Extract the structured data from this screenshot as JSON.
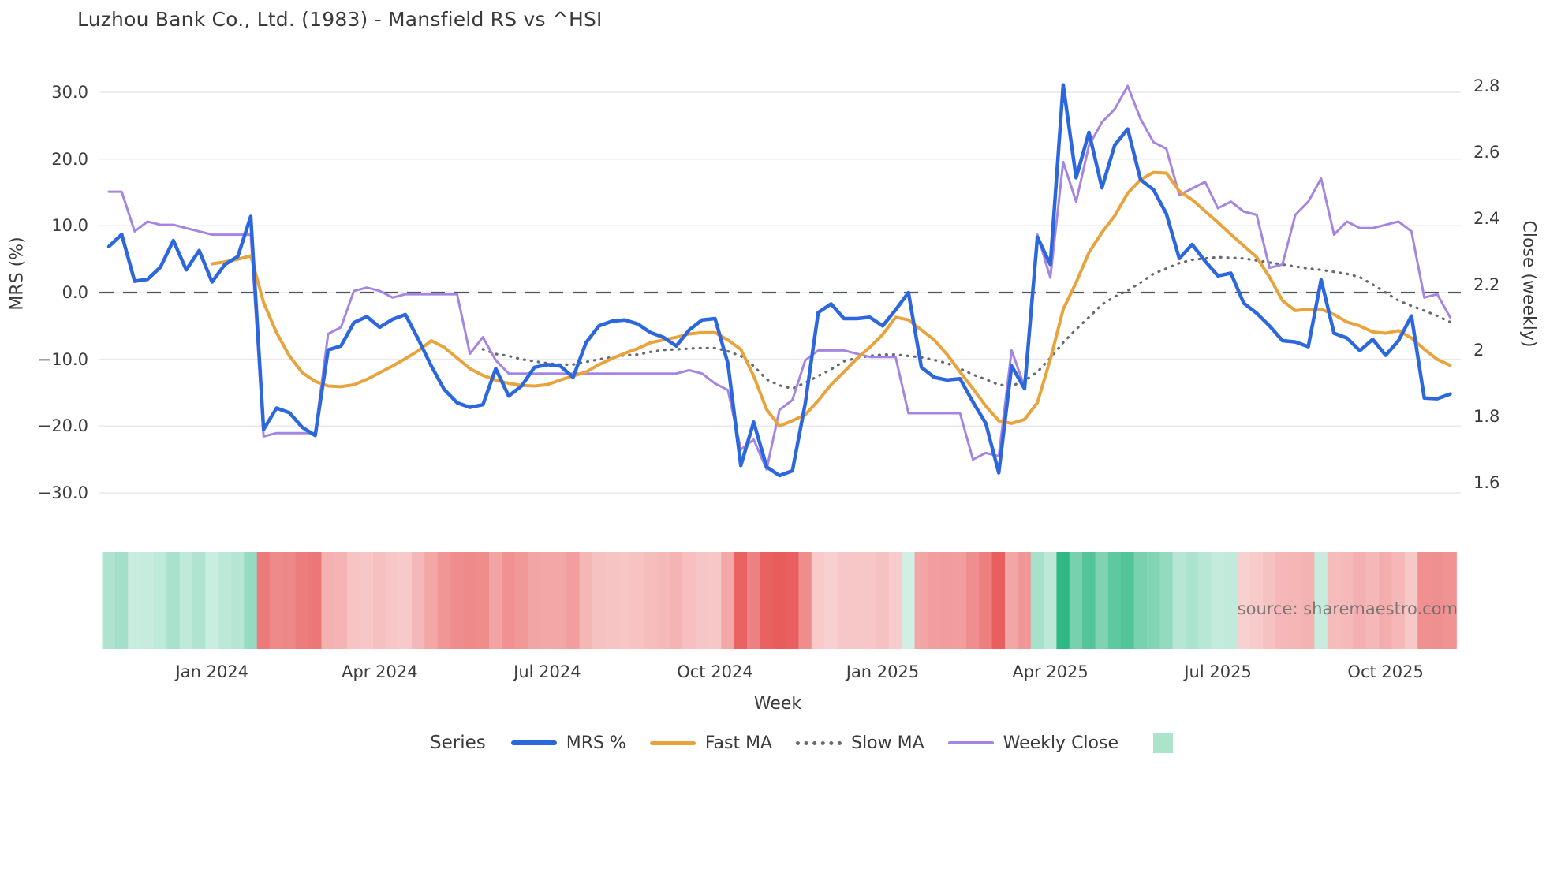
{
  "title": "Luzhou Bank Co., Ltd. (1983) - Mansfield RS vs ^HSI",
  "source": "source: sharemaestro.com",
  "axes": {
    "left": {
      "label": "MRS (%)",
      "ticks": [
        "30.0",
        "20.0",
        "10.0",
        "0.0",
        "−10.0",
        "−20.0",
        "−30.0"
      ],
      "tick_values": [
        30,
        20,
        10,
        0,
        -10,
        -20,
        -30
      ],
      "range": [
        -33,
        33
      ]
    },
    "right": {
      "label": "Close (weekly)",
      "ticks": [
        "2.8",
        "2.6",
        "2.4",
        "2.2",
        "2",
        "1.8",
        "1.6"
      ],
      "tick_values": [
        2.8,
        2.6,
        2.4,
        2.2,
        2.0,
        1.8,
        1.6
      ],
      "range": [
        1.55,
        2.85
      ]
    },
    "x": {
      "label": "Week",
      "ticks": [
        "Jan 2024",
        "Apr 2024",
        "Jul 2024",
        "Oct 2024",
        "Jan 2025",
        "Apr 2025",
        "Jul 2025",
        "Oct 2025"
      ],
      "tick_weeks": [
        8,
        21,
        34,
        47,
        60,
        73,
        86,
        99
      ]
    }
  },
  "legend": {
    "title": "Series",
    "items": [
      {
        "label": "MRS %",
        "color": "#2c67de",
        "style": "solid"
      },
      {
        "label": "Fast MA",
        "color": "#e8a33d",
        "style": "solid"
      },
      {
        "label": "Slow MA",
        "color": "#66696e",
        "style": "dotted"
      },
      {
        "label": "Weekly Close",
        "color": "#a685e2",
        "style": "solid"
      }
    ],
    "heatmap_swatch_color": "#ace4cb"
  },
  "colors": {
    "grid": "#e9e9f2",
    "zero_line": "#50555e",
    "heatmap_positive": "#2fb884",
    "heatmap_negative": "#e64c4c",
    "background": "#ffffff",
    "text": "#3a3a3a"
  },
  "chart_data": {
    "type": "line",
    "title": "Luzhou Bank Co., Ltd. (1983) - Mansfield RS vs ^HSI",
    "xlabel": "Week",
    "ylabel_left": "MRS (%)",
    "ylabel_right": "Close (weekly)",
    "weeks_total": 105,
    "x_tick_weeks": [
      8,
      21,
      34,
      47,
      60,
      73,
      86,
      99
    ],
    "x_tick_labels": [
      "Jan 2024",
      "Apr 2024",
      "Jul 2024",
      "Oct 2024",
      "Jan 2025",
      "Apr 2025",
      "Jul 2025",
      "Oct 2025"
    ],
    "zero_reference_line": 0,
    "grid": true,
    "legend_position": "bottom",
    "series": [
      {
        "name": "MRS %",
        "axis": "left",
        "style": "solid",
        "width": 4.5,
        "color": "#2c67de",
        "values": [
          6.9,
          8.7,
          1.7,
          2.0,
          3.8,
          7.8,
          3.4,
          6.3,
          1.6,
          4.2,
          5.4,
          11.4,
          -20.5,
          -17.3,
          -18.0,
          -20.2,
          -21.4,
          -8.6,
          -8.0,
          -4.5,
          -3.6,
          -5.2,
          -4.0,
          -3.3,
          -7.0,
          -11.0,
          -14.5,
          -16.5,
          -17.2,
          -16.8,
          -11.4,
          -15.5,
          -14.0,
          -11.2,
          -10.8,
          -11.0,
          -12.7,
          -7.5,
          -5.0,
          -4.3,
          -4.1,
          -4.7,
          -6.0,
          -6.7,
          -8.0,
          -5.6,
          -4.1,
          -3.9,
          -10.6,
          -25.9,
          -19.4,
          -26.1,
          -27.4,
          -26.7,
          -16.6,
          -3.0,
          -1.7,
          -3.9,
          -3.9,
          -3.7,
          -5.0,
          -2.6,
          0.0,
          -11.2,
          -12.7,
          -13.1,
          -12.9,
          -16.4,
          -19.6,
          -27.0,
          -11.0,
          -14.4,
          8.3,
          4.2,
          31.1,
          17.2,
          24.0,
          15.7,
          22.1,
          24.5,
          16.9,
          15.4,
          11.8,
          5.1,
          7.2,
          4.7,
          2.5,
          2.9,
          -1.6,
          -3.1,
          -5.0,
          -7.2,
          -7.4,
          -8.1,
          1.9,
          -6.1,
          -6.8,
          -8.7,
          -7.0,
          -9.4,
          -7.2,
          -3.5,
          -15.8,
          -15.9,
          -15.2
        ]
      },
      {
        "name": "Fast MA",
        "axis": "left",
        "style": "solid",
        "width": 4,
        "color": "#e8a33d",
        "values": [
          null,
          null,
          null,
          null,
          null,
          null,
          null,
          null,
          4.3,
          4.6,
          5.0,
          5.5,
          -1.5,
          -6.0,
          -9.5,
          -12.0,
          -13.3,
          -14.0,
          -14.1,
          -13.8,
          -13.0,
          -12.0,
          -11.0,
          -9.9,
          -8.7,
          -7.2,
          -8.2,
          -9.8,
          -11.4,
          -12.4,
          -13.1,
          -13.6,
          -13.9,
          -14.0,
          -13.8,
          -13.1,
          -12.5,
          -11.9,
          -10.8,
          -9.9,
          -9.1,
          -8.4,
          -7.5,
          -7.1,
          -6.7,
          -6.2,
          -6.0,
          -6.0,
          -7.1,
          -8.5,
          -12.5,
          -17.5,
          -20.0,
          -19.2,
          -18.3,
          -16.2,
          -13.8,
          -11.9,
          -9.9,
          -8.2,
          -6.3,
          -3.7,
          -4.1,
          -5.6,
          -7.1,
          -9.3,
          -11.9,
          -14.4,
          -17.0,
          -19.2,
          -19.6,
          -19.0,
          -16.5,
          -10.0,
          -2.5,
          1.5,
          6.0,
          9.0,
          11.5,
          14.9,
          16.9,
          18.0,
          17.9,
          15.2,
          13.9,
          12.2,
          10.5,
          8.7,
          7.0,
          5.3,
          2.3,
          -1.2,
          -2.7,
          -2.5,
          -2.5,
          -3.3,
          -4.4,
          -5.0,
          -5.9,
          -6.1,
          -5.7,
          -6.8,
          -8.5,
          -10.0,
          -10.9
        ]
      },
      {
        "name": "Slow MA",
        "axis": "left",
        "style": "dotted",
        "width": 3.2,
        "color": "#66696e",
        "values": [
          null,
          null,
          null,
          null,
          null,
          null,
          null,
          null,
          null,
          null,
          null,
          null,
          null,
          null,
          null,
          null,
          null,
          null,
          null,
          null,
          null,
          null,
          null,
          null,
          null,
          null,
          null,
          null,
          null,
          -8.5,
          -9.2,
          -9.5,
          -10.0,
          -10.3,
          -10.6,
          -10.8,
          -10.8,
          -10.4,
          -10.0,
          -9.7,
          -9.4,
          -9.3,
          -8.9,
          -8.6,
          -8.5,
          -8.4,
          -8.3,
          -8.3,
          -8.8,
          -9.5,
          -11.0,
          -13.0,
          -13.9,
          -14.4,
          -13.5,
          -12.5,
          -11.5,
          -10.3,
          -9.8,
          -9.5,
          -9.3,
          -9.3,
          -9.5,
          -9.7,
          -10.1,
          -10.6,
          -11.4,
          -12.3,
          -13.0,
          -13.8,
          -14.0,
          -13.2,
          -11.9,
          -9.8,
          -7.5,
          -5.5,
          -3.7,
          -1.8,
          -0.6,
          0.3,
          1.5,
          2.8,
          3.6,
          4.4,
          4.9,
          5.1,
          5.3,
          5.2,
          5.1,
          4.8,
          4.5,
          4.2,
          3.9,
          3.6,
          3.4,
          3.1,
          2.8,
          2.3,
          1.2,
          0.0,
          -1.2,
          -2.0,
          -2.7,
          -3.5,
          -4.4
        ]
      },
      {
        "name": "Weekly Close",
        "axis": "right",
        "style": "solid",
        "width": 3,
        "color": "#a685e2",
        "values": [
          2.48,
          2.48,
          2.36,
          2.39,
          2.38,
          2.38,
          2.37,
          2.36,
          2.35,
          2.35,
          2.35,
          2.35,
          1.74,
          1.75,
          1.75,
          1.75,
          1.75,
          2.05,
          2.07,
          2.18,
          2.19,
          2.18,
          2.16,
          2.17,
          2.17,
          2.17,
          2.17,
          2.17,
          1.99,
          2.04,
          1.97,
          1.93,
          1.93,
          1.93,
          1.93,
          1.93,
          1.93,
          1.93,
          1.93,
          1.93,
          1.93,
          1.93,
          1.93,
          1.93,
          1.93,
          1.94,
          1.93,
          1.9,
          1.88,
          1.7,
          1.73,
          1.64,
          1.82,
          1.85,
          1.97,
          2.0,
          2.0,
          2.0,
          1.99,
          1.98,
          1.98,
          1.98,
          1.81,
          1.81,
          1.81,
          1.81,
          1.81,
          1.67,
          1.69,
          1.68,
          2.0,
          1.89,
          2.35,
          2.22,
          2.57,
          2.45,
          2.62,
          2.69,
          2.73,
          2.8,
          2.7,
          2.63,
          2.61,
          2.47,
          2.49,
          2.51,
          2.43,
          2.45,
          2.42,
          2.41,
          2.25,
          2.26,
          2.41,
          2.45,
          2.52,
          2.35,
          2.39,
          2.37,
          2.37,
          2.38,
          2.39,
          2.36,
          2.16,
          2.17,
          2.1
        ]
      }
    ],
    "heatmap": {
      "description": "weekly color strip below plot; green for positive MRS %, red for negative, intensity scales with magnitude",
      "derived_from": "MRS %",
      "positive_color": "#2fb884",
      "negative_color": "#e64c4c"
    }
  }
}
